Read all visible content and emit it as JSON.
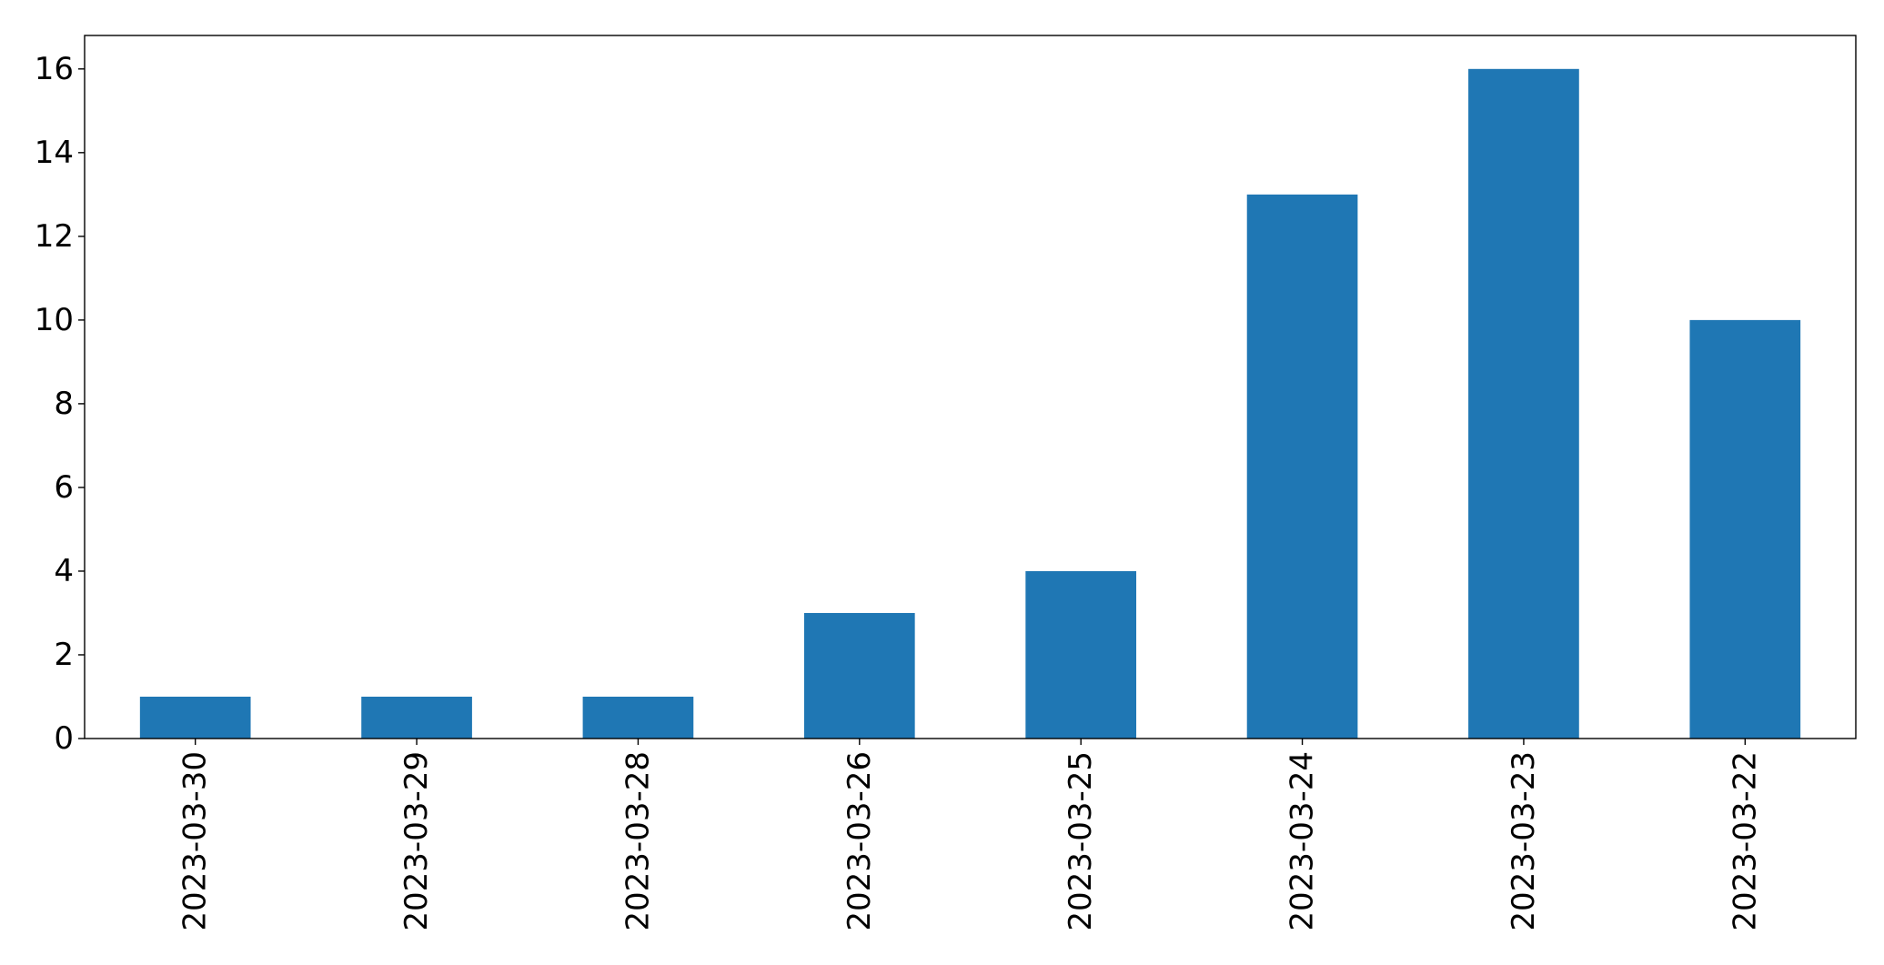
{
  "chart_data": {
    "type": "bar",
    "title": "",
    "xlabel": "",
    "ylabel": "",
    "categories": [
      "2023-03-30",
      "2023-03-29",
      "2023-03-28",
      "2023-03-26",
      "2023-03-25",
      "2023-03-24",
      "2023-03-23",
      "2023-03-22"
    ],
    "values": [
      1,
      1,
      1,
      3,
      4,
      13,
      16,
      10
    ],
    "ylim": [
      0,
      16.8
    ],
    "yticks": [
      0,
      2,
      4,
      6,
      8,
      10,
      12,
      14,
      16
    ],
    "grid": false,
    "legend": "none",
    "bar_color": "#1f77b4",
    "x_tick_rotation": "vertical"
  }
}
